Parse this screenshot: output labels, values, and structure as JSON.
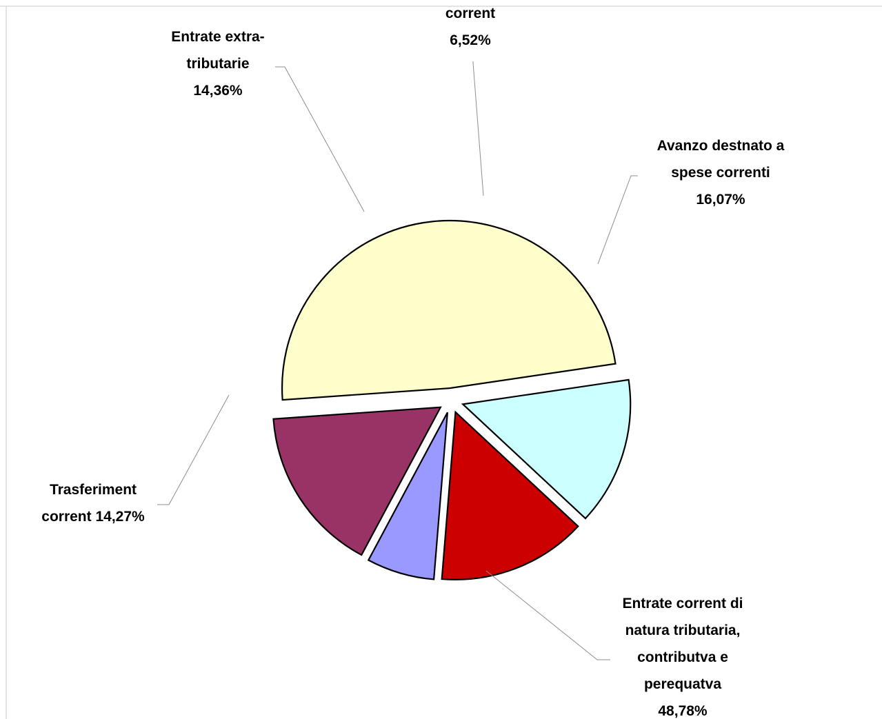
{
  "chart_data": {
    "type": "pie",
    "legend": "none",
    "slices": [
      {
        "label_lines": [
          "Entrate corrent di",
          "natura tributaria,",
          "contributva e",
          "perequatva",
          "48,78%"
        ],
        "value": 48.78,
        "color": "#ffffcc"
      },
      {
        "label_lines": [
          "Trasferiment",
          "corrent 14,27%"
        ],
        "value": 14.27,
        "color": "#ccffff"
      },
      {
        "label_lines": [
          "Entrate extra-",
          "tributarie",
          "14,36%"
        ],
        "value": 14.36,
        "color": "#cc0000"
      },
      {
        "label_lines": [
          "corrent",
          "6,52%"
        ],
        "value": 6.52,
        "color": "#9999ff"
      },
      {
        "label_lines": [
          "Avanzo destnato a",
          "spese correnti",
          "16,07%"
        ],
        "value": 16.07,
        "color": "#993366"
      }
    ]
  }
}
